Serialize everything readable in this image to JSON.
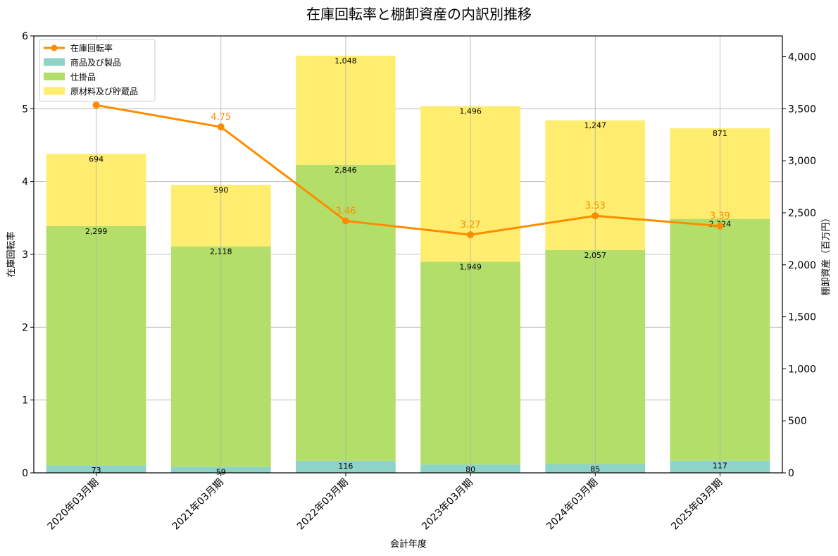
{
  "chart_data": {
    "type": "bar",
    "title": "在庫回転率と棚卸資産の内訳別推移",
    "xlabel": "会計年度",
    "ylabel_left": "在庫回転率",
    "ylabel_right": "棚卸資産（百万円）",
    "categories": [
      "2020年03月期",
      "2021年03月期",
      "2022年03月期",
      "2023年03月期",
      "2024年03月期",
      "2025年03月期"
    ],
    "ylim_left": [
      0,
      6
    ],
    "ylim_right": [
      0,
      4200
    ],
    "yticks_left": [
      "0",
      "1",
      "2",
      "3",
      "4",
      "5",
      "6"
    ],
    "yticks_right": [
      "0",
      "500",
      "1,000",
      "1,500",
      "2,000",
      "2,500",
      "3,000",
      "3,500",
      "4,000"
    ],
    "grid": true,
    "legend_position": "upper-left",
    "series": [
      {
        "name": "商品及び製品",
        "kind": "stacked-bar",
        "axis": "right",
        "color": "#8dd3c7",
        "values": [
          73,
          59,
          116,
          80,
          85,
          117
        ],
        "labels": [
          "73",
          "59",
          "116",
          "80",
          "85",
          "117"
        ]
      },
      {
        "name": "仕掛品",
        "kind": "stacked-bar",
        "axis": "right",
        "color": "#b3de69",
        "values": [
          2299,
          2118,
          2846,
          1949,
          2057,
          2324
        ],
        "labels": [
          "2,299",
          "2,118",
          "2,846",
          "1,949",
          "2,057",
          "2,324"
        ]
      },
      {
        "name": "原材料及び貯蔵品",
        "kind": "stacked-bar",
        "axis": "right",
        "color": "#ffed6f",
        "values": [
          694,
          590,
          1048,
          1496,
          1247,
          871
        ],
        "labels": [
          "694",
          "590",
          "1,048",
          "1,496",
          "1,247",
          "871"
        ]
      },
      {
        "name": "在庫回転率",
        "kind": "line",
        "axis": "left",
        "color": "#ff8c00",
        "values": [
          5.05,
          4.75,
          3.46,
          3.27,
          3.53,
          3.39
        ],
        "labels": [
          "",
          "4.75",
          "3.46",
          "3.27",
          "3.53",
          "3.39"
        ]
      }
    ]
  }
}
